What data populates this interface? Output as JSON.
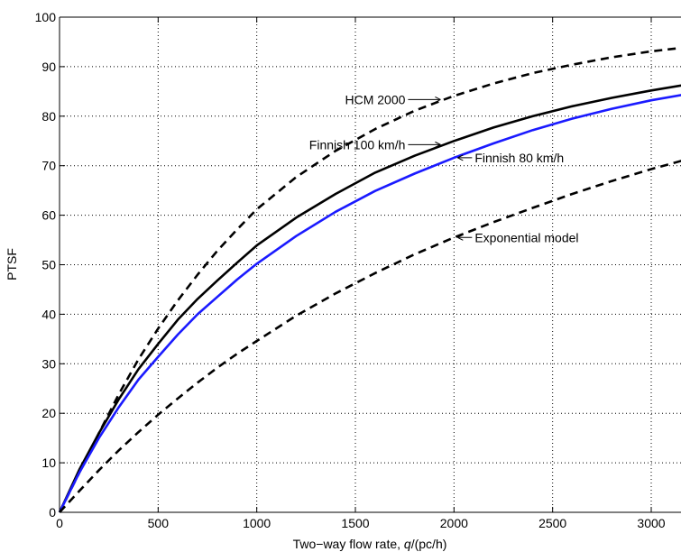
{
  "chart_data": {
    "type": "line",
    "title": "",
    "xlabel": "Two−way flow rate, ",
    "xlabel_var": "q",
    "xlabel_unit": "/(pc/h)",
    "ylabel": "PTSF",
    "xlim": [
      0,
      3200
    ],
    "ylim": [
      0,
      100
    ],
    "xticks": [
      "0",
      "500",
      "1000",
      "1500",
      "2000",
      "2500",
      "3000"
    ],
    "yticks": [
      "0",
      "10",
      "20",
      "30",
      "40",
      "50",
      "60",
      "70",
      "80",
      "90",
      "100"
    ],
    "grid": "dotted",
    "legend": "none",
    "series": [
      {
        "name": "HCM 2000",
        "color": "#000000",
        "style": "dashed",
        "x": [
          0,
          100,
          200,
          300,
          400,
          500,
          600,
          700,
          800,
          900,
          1000,
          1200,
          1400,
          1600,
          1800,
          2000,
          2200,
          2400,
          2600,
          2800,
          3000,
          3200
        ],
        "y": [
          0,
          8.0,
          16.0,
          23.8,
          30.9,
          37.1,
          42.8,
          48.0,
          52.8,
          57.1,
          61.2,
          67.7,
          73.0,
          77.4,
          81.1,
          84.1,
          86.6,
          88.7,
          90.4,
          91.9,
          93.1,
          94.0
        ]
      },
      {
        "name": "Finnish 100 km/h",
        "color": "#000000",
        "style": "solid",
        "x": [
          0,
          100,
          200,
          300,
          400,
          500,
          600,
          700,
          800,
          900,
          1000,
          1200,
          1400,
          1600,
          1800,
          2000,
          2200,
          2400,
          2600,
          2800,
          3000,
          3200
        ],
        "y": [
          0,
          8.6,
          16.0,
          22.8,
          28.9,
          34.0,
          38.9,
          43.1,
          46.8,
          50.4,
          53.9,
          59.5,
          64.3,
          68.6,
          72.0,
          75.0,
          77.7,
          80.0,
          82.0,
          83.7,
          85.2,
          86.5
        ]
      },
      {
        "name": "Finnish 80 km/h",
        "color": "#1a1aff",
        "style": "solid",
        "x": [
          0,
          100,
          200,
          300,
          400,
          500,
          600,
          700,
          800,
          900,
          1000,
          1200,
          1400,
          1600,
          1800,
          2000,
          2200,
          2400,
          2600,
          2800,
          3000,
          3200
        ],
        "y": [
          0,
          8.0,
          15.0,
          21.2,
          26.8,
          31.4,
          35.9,
          40.0,
          43.5,
          47.0,
          50.2,
          55.8,
          60.7,
          64.9,
          68.4,
          71.6,
          74.5,
          77.2,
          79.5,
          81.5,
          83.2,
          84.6
        ]
      },
      {
        "name": "Exponential model",
        "color": "#000000",
        "style": "dashed",
        "x": [
          0,
          100,
          200,
          300,
          400,
          500,
          600,
          700,
          800,
          900,
          1000,
          1200,
          1400,
          1600,
          1800,
          2000,
          2200,
          2400,
          2600,
          2800,
          3000,
          3200
        ],
        "y": [
          0,
          4.3,
          8.5,
          12.5,
          16.2,
          19.7,
          23.0,
          26.2,
          29.2,
          32.0,
          34.6,
          39.7,
          44.2,
          48.3,
          52.1,
          55.5,
          58.6,
          61.5,
          64.3,
          66.9,
          69.3,
          71.5
        ]
      }
    ],
    "annotations": [
      {
        "text": "HCM 2000",
        "arrow": "right",
        "series": "HCM 2000",
        "at_x": 1950
      },
      {
        "text": "Finnish 100 km/h",
        "arrow": "right",
        "series": "Finnish 100 km/h",
        "at_x": 1950
      },
      {
        "text": "Finnish 80 km/h",
        "arrow": "left",
        "series": "Finnish 80 km/h",
        "at_x": 2000
      },
      {
        "text": "Exponential model",
        "arrow": "left",
        "series": "Exponential model",
        "at_x": 2000
      }
    ]
  }
}
